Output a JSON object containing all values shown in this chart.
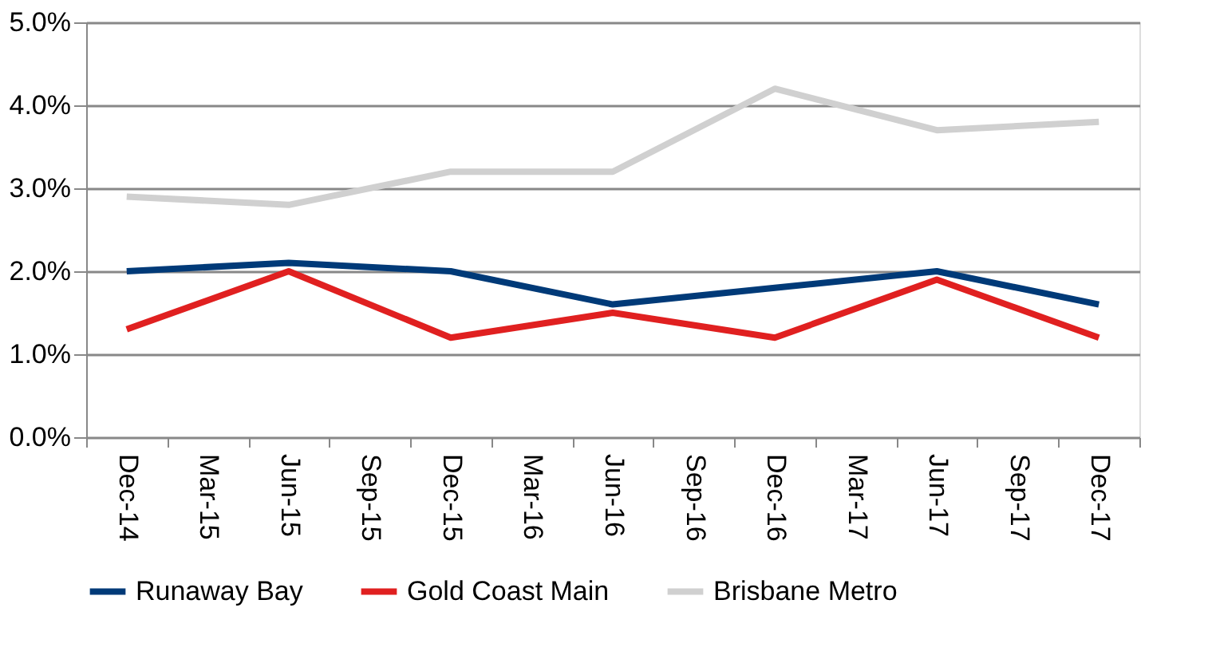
{
  "chart_data": {
    "type": "line",
    "categories": [
      "Dec-14",
      "Mar-15",
      "Jun-15",
      "Sep-15",
      "Dec-15",
      "Mar-16",
      "Jun-16",
      "Sep-16",
      "Dec-16",
      "Mar-17",
      "Jun-17",
      "Sep-17",
      "Dec-17"
    ],
    "series": [
      {
        "name": "Runaway Bay",
        "color": "#003a78",
        "values": [
          2.0,
          null,
          2.1,
          null,
          2.0,
          null,
          1.6,
          null,
          1.8,
          null,
          2.0,
          null,
          1.6
        ]
      },
      {
        "name": "Gold Coast Main",
        "color": "#e02020",
        "values": [
          1.3,
          null,
          2.0,
          null,
          1.2,
          null,
          1.5,
          null,
          1.2,
          null,
          1.9,
          null,
          1.2
        ]
      },
      {
        "name": "Brisbane Metro",
        "color": "#d0d0d0",
        "values": [
          2.9,
          null,
          2.8,
          null,
          3.2,
          null,
          3.2,
          null,
          4.2,
          null,
          3.7,
          null,
          3.8
        ]
      }
    ],
    "ylim": [
      0,
      5
    ],
    "yticks": [
      {
        "value": 0,
        "label": "0.0%"
      },
      {
        "value": 1,
        "label": "1.0%"
      },
      {
        "value": 2,
        "label": "2.0%"
      },
      {
        "value": 3,
        "label": "3.0%"
      },
      {
        "value": 4,
        "label": "4.0%"
      },
      {
        "value": 5,
        "label": "5.0%"
      }
    ],
    "grid": "y",
    "legend": "bottom",
    "marker": "none",
    "line_style": "solid"
  }
}
